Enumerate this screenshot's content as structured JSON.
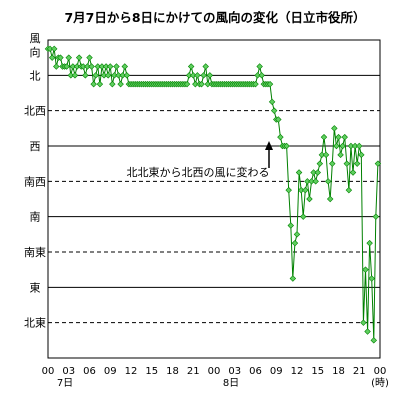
{
  "chart_data": {
    "type": "line",
    "title": "7月7日から8日にかけての風向の変化（日立市役所）",
    "ylabel": "風向",
    "xunit": "(時)",
    "y_categories": [
      "北東",
      "東",
      "南東",
      "南",
      "南西",
      "西",
      "北西",
      "北"
    ],
    "y_solid_lines": [
      "北",
      "西",
      "南",
      "東"
    ],
    "ylim": [
      0,
      9
    ],
    "xlim": [
      0,
      48
    ],
    "x_ticks": [
      "00",
      "03",
      "06",
      "09",
      "12",
      "15",
      "18",
      "21",
      "00",
      "03",
      "06",
      "09",
      "12",
      "15",
      "18",
      "21",
      "00"
    ],
    "x_day_labels": [
      {
        "label": "7日",
        "at": 0
      },
      {
        "label": "8日",
        "at": 24
      }
    ],
    "annotation": "北北東から北西の風に変わる",
    "line_color": "#008000",
    "marker_color": "#5fcf5f",
    "series": [
      {
        "points": [
          [
            0.0,
            8.75
          ],
          [
            0.3,
            8.75
          ],
          [
            0.6,
            8.5
          ],
          [
            0.9,
            8.75
          ],
          [
            1.2,
            8.25
          ],
          [
            1.5,
            8.5
          ],
          [
            1.8,
            8.5
          ],
          [
            2.1,
            8.25
          ],
          [
            2.4,
            8.25
          ],
          [
            2.7,
            8.25
          ],
          [
            3.0,
            8.5
          ],
          [
            3.3,
            8.0
          ],
          [
            3.6,
            8.25
          ],
          [
            3.9,
            8.0
          ],
          [
            4.2,
            8.25
          ],
          [
            4.5,
            8.5
          ],
          [
            4.8,
            8.25
          ],
          [
            5.1,
            8.25
          ],
          [
            5.4,
            8.0
          ],
          [
            5.7,
            8.25
          ],
          [
            6.0,
            8.5
          ],
          [
            6.3,
            8.25
          ],
          [
            6.6,
            7.75
          ],
          [
            6.9,
            8.0
          ],
          [
            7.2,
            8.25
          ],
          [
            7.5,
            7.75
          ],
          [
            7.8,
            8.25
          ],
          [
            8.1,
            8.0
          ],
          [
            8.4,
            8.25
          ],
          [
            8.7,
            8.0
          ],
          [
            9.0,
            8.25
          ],
          [
            9.3,
            7.75
          ],
          [
            9.6,
            8.0
          ],
          [
            9.9,
            8.25
          ],
          [
            10.2,
            8.0
          ],
          [
            10.5,
            7.75
          ],
          [
            10.8,
            8.0
          ],
          [
            11.1,
            8.25
          ],
          [
            11.4,
            8.0
          ],
          [
            11.7,
            7.75
          ],
          [
            12.0,
            7.75
          ],
          [
            12.3,
            7.75
          ],
          [
            12.6,
            7.75
          ],
          [
            12.9,
            7.75
          ],
          [
            13.2,
            7.75
          ],
          [
            13.5,
            7.75
          ],
          [
            13.8,
            7.75
          ],
          [
            14.1,
            7.75
          ],
          [
            14.4,
            7.75
          ],
          [
            14.7,
            7.75
          ],
          [
            15.0,
            7.75
          ],
          [
            15.3,
            7.75
          ],
          [
            15.6,
            7.75
          ],
          [
            15.9,
            7.75
          ],
          [
            16.2,
            7.75
          ],
          [
            16.5,
            7.75
          ],
          [
            16.8,
            7.75
          ],
          [
            17.1,
            7.75
          ],
          [
            17.4,
            7.75
          ],
          [
            17.7,
            7.75
          ],
          [
            18.0,
            7.75
          ],
          [
            18.3,
            7.75
          ],
          [
            18.6,
            7.75
          ],
          [
            18.9,
            7.75
          ],
          [
            19.2,
            7.75
          ],
          [
            19.5,
            7.75
          ],
          [
            19.8,
            7.75
          ],
          [
            20.1,
            7.75
          ],
          [
            20.4,
            8.0
          ],
          [
            20.7,
            8.25
          ],
          [
            21.0,
            8.0
          ],
          [
            21.3,
            7.75
          ],
          [
            21.6,
            8.0
          ],
          [
            21.9,
            7.75
          ],
          [
            22.2,
            7.75
          ],
          [
            22.5,
            8.0
          ],
          [
            22.8,
            8.25
          ],
          [
            23.1,
            7.75
          ],
          [
            23.4,
            8.0
          ],
          [
            23.7,
            7.75
          ],
          [
            24.0,
            7.75
          ],
          [
            24.3,
            7.75
          ],
          [
            24.6,
            7.75
          ],
          [
            24.9,
            7.75
          ],
          [
            25.2,
            7.75
          ],
          [
            25.5,
            7.75
          ],
          [
            25.8,
            7.75
          ],
          [
            26.1,
            7.75
          ],
          [
            26.4,
            7.75
          ],
          [
            26.7,
            7.75
          ],
          [
            27.0,
            7.75
          ],
          [
            27.3,
            7.75
          ],
          [
            27.6,
            7.75
          ],
          [
            27.9,
            7.75
          ],
          [
            28.2,
            7.75
          ],
          [
            28.5,
            7.75
          ],
          [
            28.8,
            7.75
          ],
          [
            29.1,
            7.75
          ],
          [
            29.4,
            7.75
          ],
          [
            29.7,
            7.75
          ],
          [
            30.0,
            7.75
          ],
          [
            30.3,
            8.0
          ],
          [
            30.6,
            8.25
          ],
          [
            30.9,
            8.0
          ],
          [
            31.2,
            7.75
          ],
          [
            31.5,
            7.75
          ],
          [
            31.8,
            7.75
          ],
          [
            32.1,
            7.75
          ],
          [
            32.4,
            7.25
          ],
          [
            32.7,
            7.0
          ],
          [
            33.0,
            6.75
          ],
          [
            33.3,
            6.75
          ],
          [
            33.6,
            6.25
          ],
          [
            33.9,
            6.0
          ],
          [
            34.2,
            6.0
          ],
          [
            34.5,
            6.0
          ],
          [
            34.8,
            4.75
          ],
          [
            35.1,
            3.75
          ],
          [
            35.4,
            2.25
          ],
          [
            35.7,
            3.25
          ],
          [
            36.0,
            3.5
          ],
          [
            36.3,
            5.25
          ],
          [
            36.6,
            4.75
          ],
          [
            36.9,
            4.0
          ],
          [
            37.2,
            4.75
          ],
          [
            37.5,
            5.0
          ],
          [
            37.8,
            4.5
          ],
          [
            38.1,
            5.0
          ],
          [
            38.4,
            5.25
          ],
          [
            38.7,
            5.0
          ],
          [
            39.0,
            5.25
          ],
          [
            39.3,
            5.5
          ],
          [
            39.6,
            5.75
          ],
          [
            39.9,
            6.25
          ],
          [
            40.2,
            5.75
          ],
          [
            40.5,
            5.0
          ],
          [
            40.8,
            4.5
          ],
          [
            41.1,
            5.5
          ],
          [
            41.4,
            6.5
          ],
          [
            41.7,
            6.0
          ],
          [
            42.0,
            6.25
          ],
          [
            42.3,
            5.75
          ],
          [
            42.6,
            6.0
          ],
          [
            42.9,
            6.25
          ],
          [
            43.2,
            5.5
          ],
          [
            43.5,
            4.75
          ],
          [
            43.8,
            6.0
          ],
          [
            44.1,
            5.25
          ],
          [
            44.4,
            6.0
          ],
          [
            44.7,
            5.5
          ],
          [
            45.0,
            6.0
          ],
          [
            45.3,
            5.75
          ],
          [
            45.6,
            1.0
          ],
          [
            45.9,
            2.5
          ],
          [
            46.2,
            0.75
          ],
          [
            46.5,
            3.25
          ],
          [
            46.8,
            2.25
          ],
          [
            47.1,
            0.5
          ],
          [
            47.4,
            4.0
          ],
          [
            47.7,
            5.5
          ]
        ]
      }
    ]
  }
}
